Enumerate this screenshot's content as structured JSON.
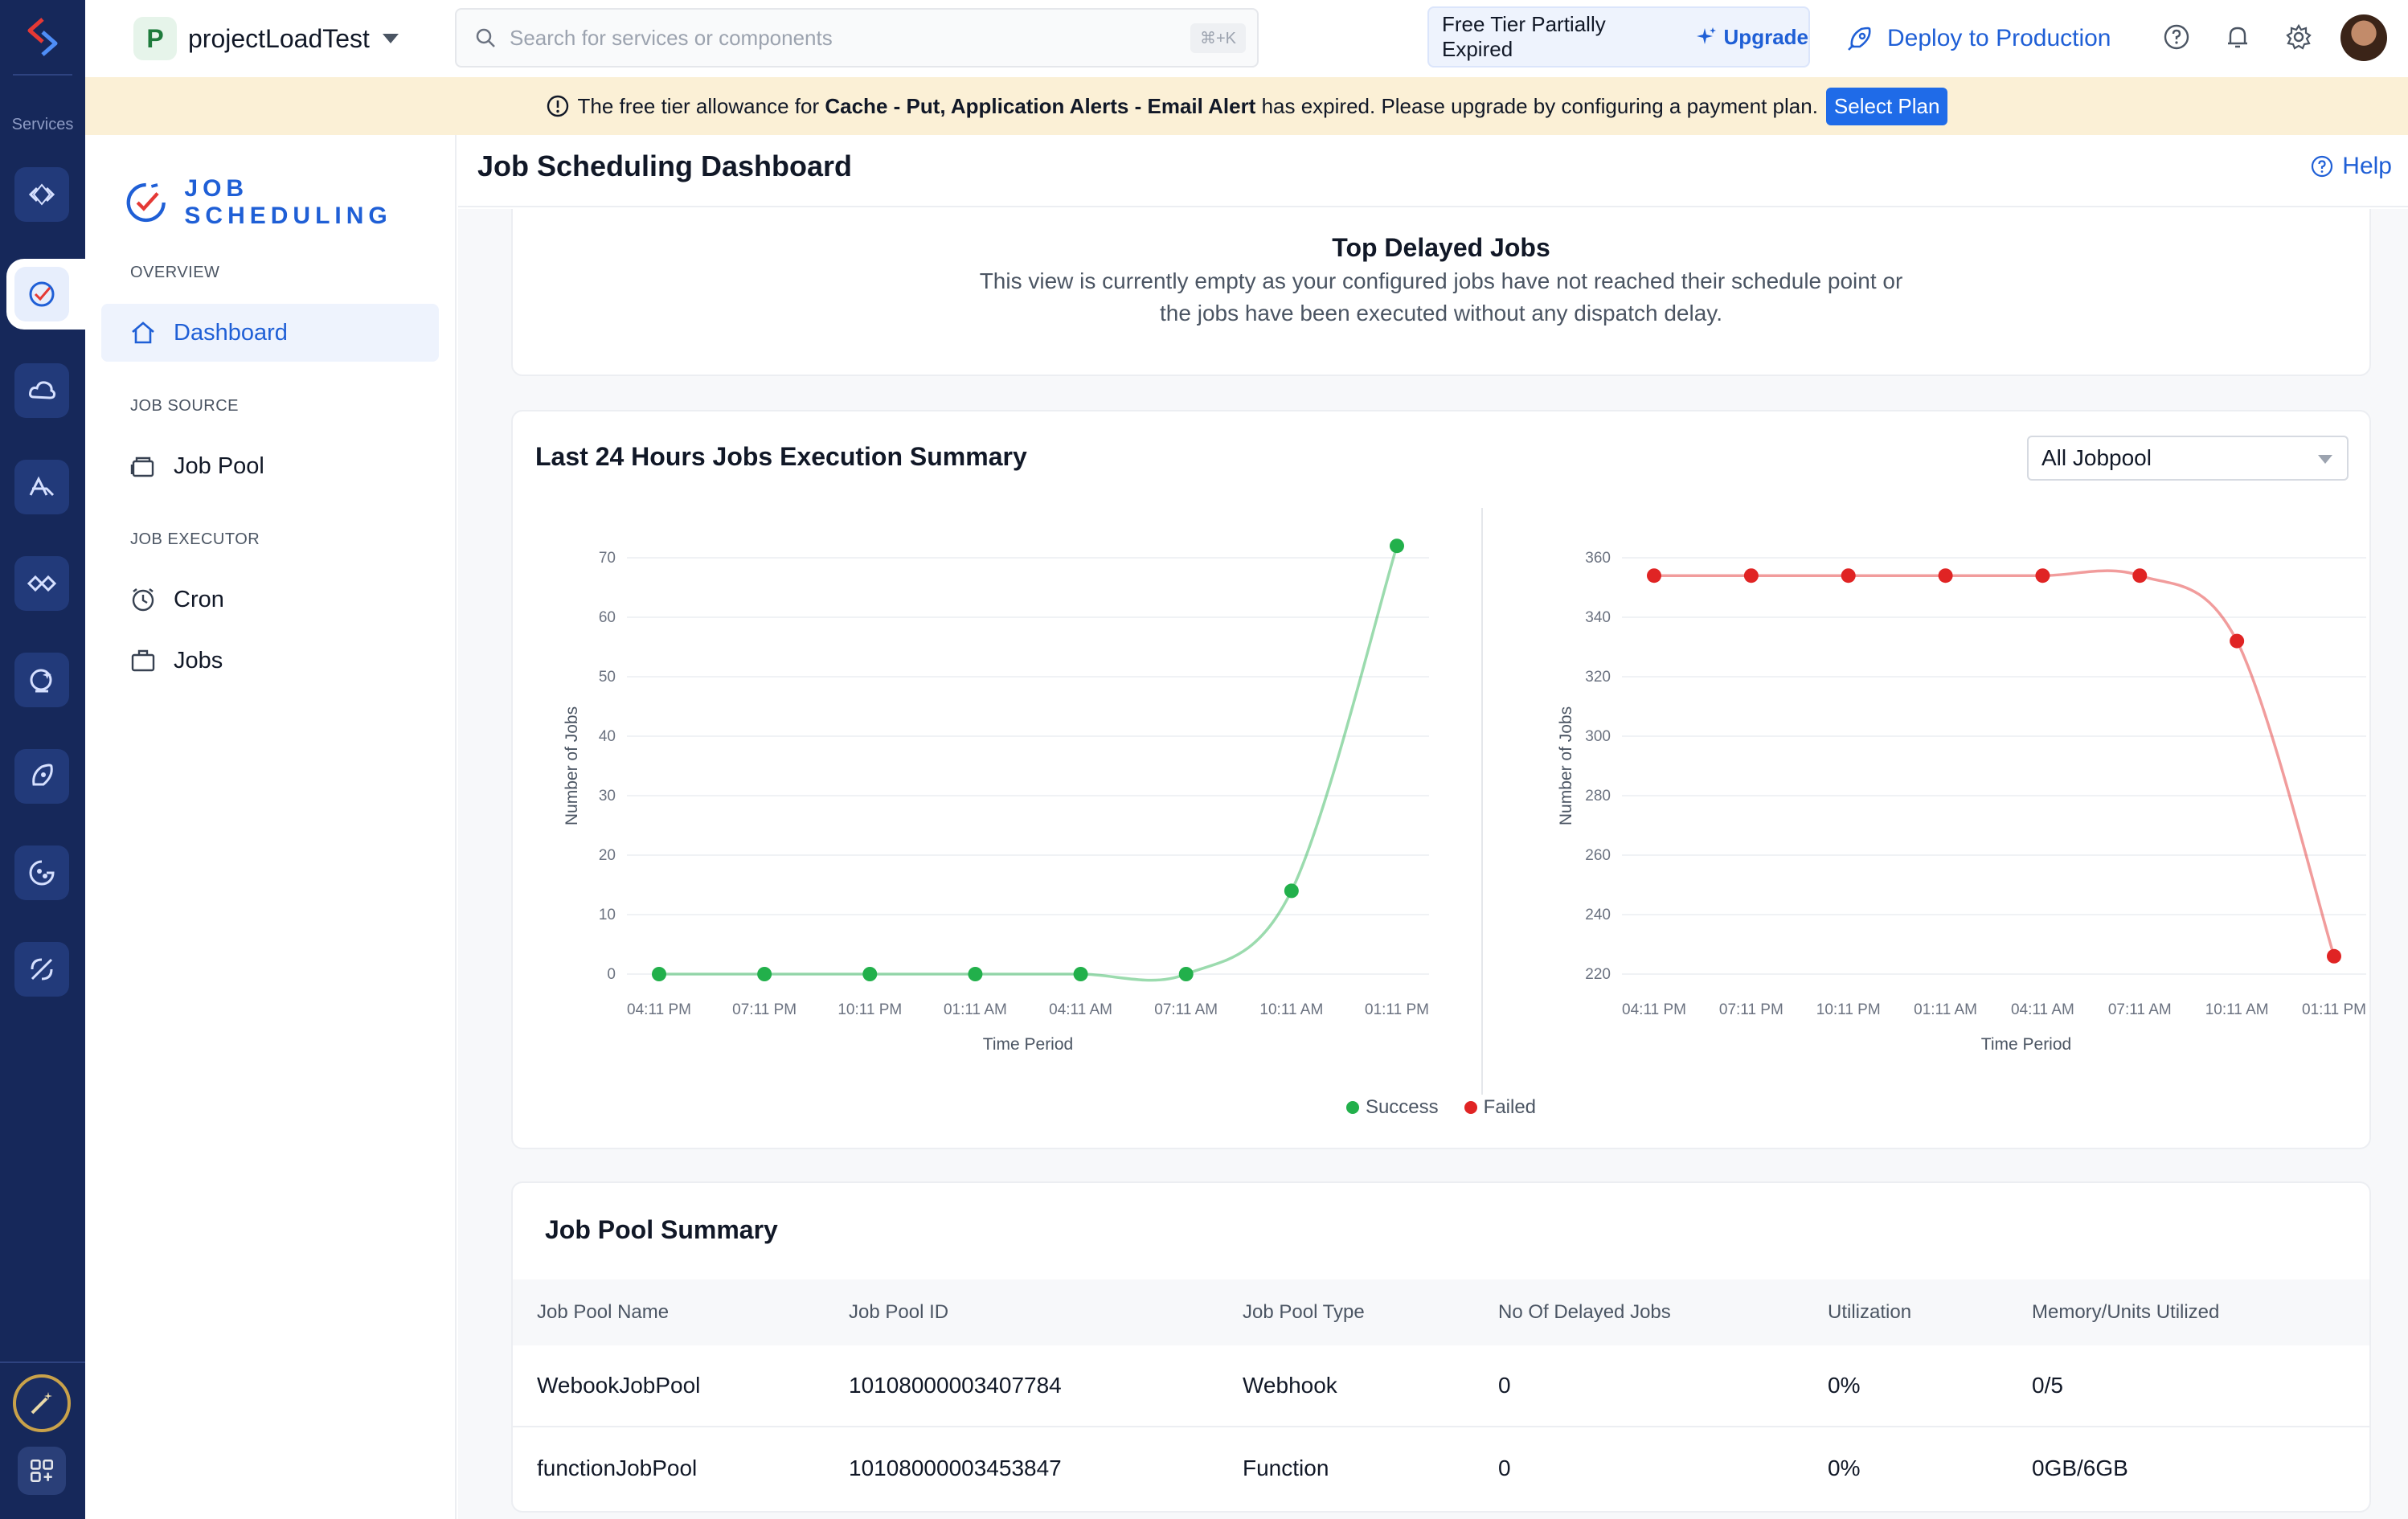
{
  "rail": {
    "services_label": "Services",
    "icons": [
      "code-icon",
      "job-scheduling-icon",
      "cloud-icon",
      "auth-icon",
      "api-gateway-icon",
      "signals-icon",
      "rocket-icon",
      "analytics-icon",
      "wand-icon"
    ]
  },
  "topbar": {
    "project_initial": "P",
    "project_name": "projectLoadTest",
    "search_placeholder": "Search for services or components",
    "search_shortcut": "⌘+K",
    "tier_text": "Free Tier Partially Expired",
    "upgrade_label": "Upgrade",
    "deploy_label": "Deploy to Production"
  },
  "banner": {
    "prefix": "The free tier allowance for",
    "services": "Cache - Put, Application Alerts - Email Alert",
    "suffix": "has expired. Please upgrade by configuring a payment plan.",
    "button": "Select Plan"
  },
  "sidebar": {
    "brand": "JOB SCHEDULING",
    "sections": [
      {
        "title": "OVERVIEW",
        "items": [
          {
            "label": "Dashboard",
            "icon": "home-icon",
            "active": true
          }
        ]
      },
      {
        "title": "JOB SOURCE",
        "items": [
          {
            "label": "Job Pool",
            "icon": "job-pool-icon"
          }
        ]
      },
      {
        "title": "JOB EXECUTOR",
        "items": [
          {
            "label": "Cron",
            "icon": "alarm-clock-icon"
          },
          {
            "label": "Jobs",
            "icon": "briefcase-icon"
          }
        ]
      }
    ]
  },
  "main": {
    "title": "Job Scheduling Dashboard",
    "help_label": "Help",
    "top_delayed": {
      "title": "Top Delayed Jobs",
      "message": "This view is currently empty as your configured jobs have not reached their schedule point or the jobs have been executed without any dispatch delay."
    },
    "execution_summary": {
      "title": "Last 24 Hours Jobs Execution Summary",
      "filter_value": "All Jobpool",
      "legend": [
        {
          "name": "Success",
          "color": "#22b04b"
        },
        {
          "name": "Failed",
          "color": "#e02424"
        }
      ]
    },
    "pool_summary": {
      "title": "Job Pool Summary",
      "columns": [
        "Job Pool Name",
        "Job Pool ID",
        "Job Pool Type",
        "No Of Delayed Jobs",
        "Utilization",
        "Memory/Units Utilized"
      ],
      "rows": [
        [
          "WebookJobPool",
          "10108000003407784",
          "Webhook",
          "0",
          "0%",
          "0/5"
        ],
        [
          "functionJobPool",
          "10108000003453847",
          "Function",
          "0",
          "0%",
          "0GB/6GB"
        ]
      ]
    }
  },
  "chart_data": [
    {
      "type": "line",
      "categories": [
        "04:11 PM",
        "07:11 PM",
        "10:11 PM",
        "01:11 AM",
        "04:11 AM",
        "07:11 AM",
        "10:11 AM",
        "01:11 PM"
      ],
      "series": [
        {
          "name": "Success",
          "values": [
            0,
            0,
            0,
            0,
            0,
            0,
            14,
            72
          ],
          "color": "#22b04b"
        }
      ],
      "xlabel": "Time Period",
      "ylabel": "Number of Jobs",
      "ylim": [
        0,
        70
      ],
      "yticks": [
        0,
        10,
        20,
        30,
        40,
        50,
        60,
        70
      ],
      "grid": true
    },
    {
      "type": "line",
      "categories": [
        "04:11 PM",
        "07:11 PM",
        "10:11 PM",
        "01:11 AM",
        "04:11 AM",
        "07:11 AM",
        "10:11 AM",
        "01:11 PM"
      ],
      "series": [
        {
          "name": "Failed",
          "values": [
            354,
            354,
            354,
            354,
            354,
            354,
            332,
            226
          ],
          "color": "#e02424"
        }
      ],
      "xlabel": "Time Period",
      "ylabel": "Number of Jobs",
      "ylim": [
        220,
        360
      ],
      "yticks": [
        220,
        240,
        260,
        280,
        300,
        320,
        340,
        360
      ],
      "grid": true
    }
  ]
}
